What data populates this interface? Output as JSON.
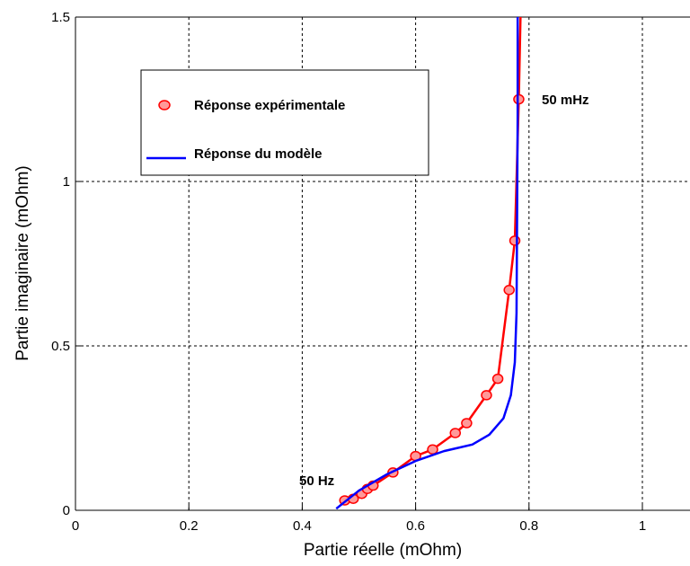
{
  "chart_data": {
    "type": "line",
    "xlabel": "Partie réelle (mOhm)",
    "ylabel": "Partie imaginaire (mOhm)",
    "xlim": [
      0,
      1.1
    ],
    "ylim": [
      0,
      1.5
    ],
    "xticks": [
      0,
      0.2,
      0.4,
      0.6,
      0.8,
      1
    ],
    "xtick_labels": [
      "0",
      "0.2",
      "0.4",
      "0.6",
      "0.8",
      "1"
    ],
    "yticks": [
      0,
      0.5,
      1,
      1.5
    ],
    "ytick_labels": [
      "0",
      "0.5",
      "1",
      "1.5"
    ],
    "grid": true,
    "legend_position": "top-left",
    "series": [
      {
        "name": "Réponse expérimentale",
        "style": "line-markers",
        "color": "#ff0000",
        "marker_fill": "#ff9999",
        "x": [
          0.475,
          0.49,
          0.505,
          0.515,
          0.525,
          0.56,
          0.6,
          0.63,
          0.67,
          0.69,
          0.725,
          0.745,
          0.765,
          0.775,
          0.782,
          0.785
        ],
        "y": [
          0.03,
          0.035,
          0.05,
          0.065,
          0.075,
          0.115,
          0.165,
          0.185,
          0.235,
          0.265,
          0.35,
          0.4,
          0.67,
          0.82,
          1.25,
          1.5
        ]
      },
      {
        "name": "Réponse du modèle",
        "style": "line",
        "color": "#0000ff",
        "x": [
          0.46,
          0.5,
          0.55,
          0.6,
          0.65,
          0.7,
          0.73,
          0.755,
          0.768,
          0.775,
          0.778,
          0.779,
          0.78,
          0.78
        ],
        "y": [
          0.005,
          0.06,
          0.11,
          0.15,
          0.18,
          0.2,
          0.23,
          0.28,
          0.35,
          0.45,
          0.6,
          0.9,
          1.2,
          1.5
        ]
      }
    ],
    "annotations": [
      {
        "text": "50 Hz",
        "x": 0.375,
        "y": 0.06
      },
      {
        "text": "50 mHz",
        "x": 0.83,
        "y": 1.25
      }
    ]
  }
}
